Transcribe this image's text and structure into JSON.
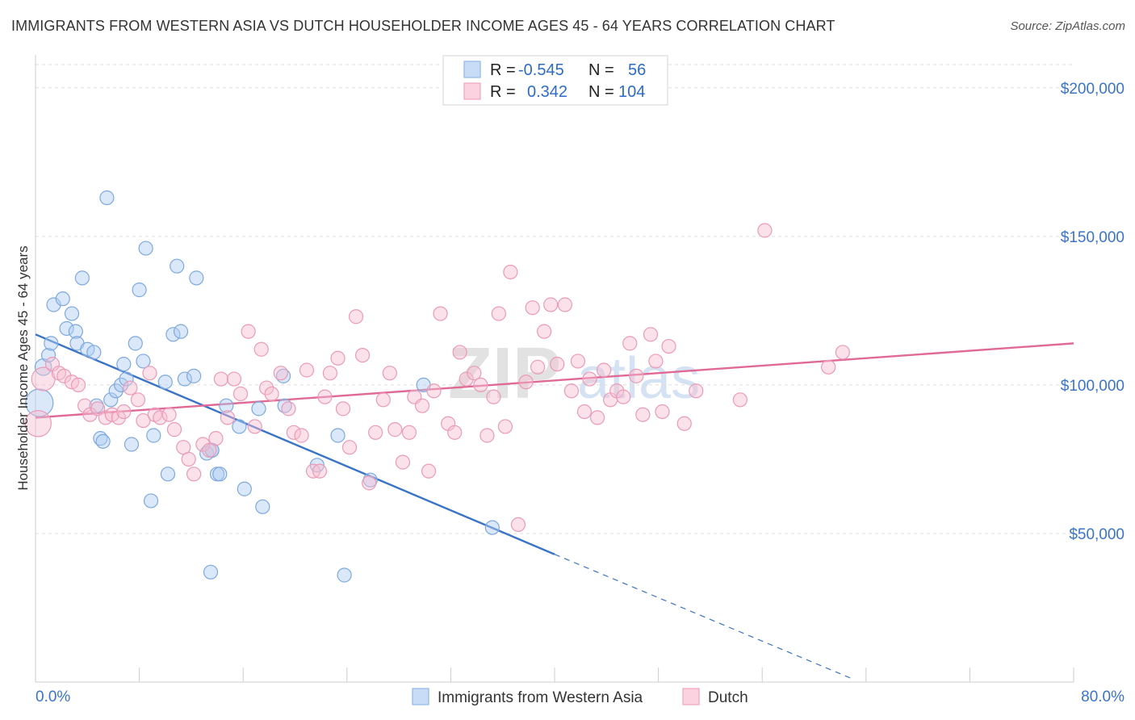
{
  "title": "IMMIGRANTS FROM WESTERN ASIA VS DUTCH HOUSEHOLDER INCOME AGES 45 - 64 YEARS CORRELATION CHART",
  "source": "Source: ZipAtlas.com",
  "watermark": {
    "zip": "ZIP",
    "atlas": "atlas"
  },
  "legend": {
    "r_label": "R =",
    "n_label": "N =",
    "rows": [
      {
        "r": "-0.545",
        "n": "56",
        "color": "#8fb8ea",
        "fill": "#c8dcf6"
      },
      {
        "r": "0.342",
        "n": "104",
        "color": "#f0a3bd",
        "fill": "#fbd3e0"
      }
    ]
  },
  "colors": {
    "blue": "#3a74c8",
    "blue_fill": "#aecbf1",
    "pink": "#e06a95",
    "pink_fill": "#f7bfd1",
    "grid": "#dddddd",
    "tick_text": "#3a74c8"
  },
  "chart_data": {
    "type": "scatter",
    "title": "IMMIGRANTS FROM WESTERN ASIA VS DUTCH HOUSEHOLDER INCOME AGES 45 - 64 YEARS CORRELATION CHART",
    "xlabel": "",
    "ylabel": "Householder Income Ages 45 - 64 years",
    "xlim": [
      0,
      80
    ],
    "ylim": [
      0,
      210000
    ],
    "x_tick_labels": [
      "0.0%",
      "80.0%"
    ],
    "y_ticks": [
      50000,
      100000,
      150000,
      200000
    ],
    "y_tick_labels": [
      "$50,000",
      "$100,000",
      "$150,000",
      "$200,000"
    ],
    "grid": true,
    "legend_position": "top-center",
    "series": [
      {
        "name": "Immigrants from Western Asia",
        "color": "#3a74c8",
        "points": [
          [
            0.3,
            94000,
            2.0
          ],
          [
            0.6,
            106000,
            1.2
          ],
          [
            1.0,
            110000,
            1.0
          ],
          [
            1.2,
            114000,
            1.0
          ],
          [
            1.4,
            127000,
            1.0
          ],
          [
            2.1,
            129000,
            1.0
          ],
          [
            2.4,
            119000,
            1.0
          ],
          [
            2.8,
            124000,
            1.0
          ],
          [
            3.1,
            118000,
            1.0
          ],
          [
            3.2,
            114000,
            1.0
          ],
          [
            3.6,
            136000,
            1.0
          ],
          [
            4.0,
            112000,
            1.0
          ],
          [
            4.5,
            111000,
            1.0
          ],
          [
            4.7,
            93000,
            1.0
          ],
          [
            5.0,
            82000,
            1.0
          ],
          [
            5.2,
            81000,
            1.0
          ],
          [
            5.5,
            163000,
            1.0
          ],
          [
            5.8,
            95000,
            1.0
          ],
          [
            6.2,
            98000,
            1.0
          ],
          [
            6.6,
            100000,
            1.0
          ],
          [
            6.8,
            107000,
            1.0
          ],
          [
            7.0,
            102000,
            1.0
          ],
          [
            7.4,
            80000,
            1.0
          ],
          [
            7.7,
            114000,
            1.0
          ],
          [
            8.0,
            132000,
            1.0
          ],
          [
            8.3,
            108000,
            1.0
          ],
          [
            8.5,
            146000,
            1.0
          ],
          [
            8.9,
            61000,
            1.0
          ],
          [
            9.1,
            83000,
            1.0
          ],
          [
            10.0,
            101000,
            1.0
          ],
          [
            10.2,
            70000,
            1.0
          ],
          [
            10.6,
            117000,
            1.0
          ],
          [
            10.9,
            140000,
            1.0
          ],
          [
            11.2,
            118000,
            1.0
          ],
          [
            11.5,
            102000,
            1.0
          ],
          [
            12.2,
            103000,
            1.0
          ],
          [
            12.4,
            136000,
            1.0
          ],
          [
            13.2,
            77000,
            1.0
          ],
          [
            13.5,
            37000,
            1.0
          ],
          [
            13.6,
            78000,
            1.0
          ],
          [
            14.0,
            70000,
            1.0
          ],
          [
            14.2,
            70000,
            1.0
          ],
          [
            14.7,
            93000,
            1.0
          ],
          [
            15.7,
            86000,
            1.0
          ],
          [
            16.1,
            65000,
            1.0
          ],
          [
            17.2,
            92000,
            1.0
          ],
          [
            17.5,
            59000,
            1.0
          ],
          [
            19.1,
            103000,
            1.0
          ],
          [
            21.7,
            73000,
            1.0
          ],
          [
            23.3,
            83000,
            1.0
          ],
          [
            23.8,
            36000,
            1.0
          ],
          [
            25.8,
            68000,
            1.0
          ],
          [
            29.9,
            100000,
            1.0
          ],
          [
            35.2,
            52000,
            1.0
          ],
          [
            19.2,
            93000,
            1.0
          ],
          [
            13.6,
            78000,
            1.0
          ]
        ]
      },
      {
        "name": "Dutch",
        "color": "#e06a95",
        "points": [
          [
            0.2,
            87000,
            1.9
          ],
          [
            0.6,
            102000,
            1.7
          ],
          [
            1.3,
            107000,
            1.0
          ],
          [
            1.8,
            104000,
            1.0
          ],
          [
            2.2,
            103000,
            1.0
          ],
          [
            2.8,
            101000,
            1.0
          ],
          [
            3.3,
            100000,
            1.0
          ],
          [
            3.8,
            93000,
            1.0
          ],
          [
            4.2,
            90000,
            1.0
          ],
          [
            4.8,
            92000,
            1.0
          ],
          [
            5.4,
            89000,
            1.0
          ],
          [
            5.9,
            90000,
            1.0
          ],
          [
            6.4,
            89000,
            1.0
          ],
          [
            6.8,
            91000,
            1.0
          ],
          [
            7.3,
            99000,
            1.0
          ],
          [
            7.9,
            95000,
            1.0
          ],
          [
            8.3,
            88000,
            1.0
          ],
          [
            8.8,
            104000,
            1.0
          ],
          [
            9.2,
            90000,
            1.0
          ],
          [
            9.6,
            89000,
            1.0
          ],
          [
            10.3,
            90000,
            1.0
          ],
          [
            10.7,
            85000,
            1.0
          ],
          [
            11.4,
            79000,
            1.0
          ],
          [
            11.8,
            75000,
            1.0
          ],
          [
            12.2,
            70000,
            1.0
          ],
          [
            12.9,
            80000,
            1.0
          ],
          [
            13.4,
            78000,
            1.0
          ],
          [
            13.9,
            82000,
            1.0
          ],
          [
            14.3,
            102000,
            1.0
          ],
          [
            14.8,
            89000,
            1.0
          ],
          [
            15.3,
            102000,
            1.0
          ],
          [
            15.8,
            97000,
            1.0
          ],
          [
            16.4,
            118000,
            1.0
          ],
          [
            16.9,
            86000,
            1.0
          ],
          [
            17.4,
            112000,
            1.0
          ],
          [
            17.8,
            99000,
            1.0
          ],
          [
            18.2,
            97000,
            1.0
          ],
          [
            18.9,
            104000,
            1.0
          ],
          [
            19.5,
            92000,
            1.0
          ],
          [
            19.9,
            84000,
            1.0
          ],
          [
            20.5,
            83000,
            1.0
          ],
          [
            20.9,
            105000,
            1.0
          ],
          [
            21.4,
            71000,
            1.0
          ],
          [
            21.9,
            71000,
            1.0
          ],
          [
            22.3,
            96000,
            1.0
          ],
          [
            22.7,
            104000,
            1.0
          ],
          [
            23.3,
            109000,
            1.0
          ],
          [
            23.7,
            92000,
            1.0
          ],
          [
            24.2,
            79000,
            1.0
          ],
          [
            24.7,
            123000,
            1.0
          ],
          [
            25.2,
            110000,
            1.0
          ],
          [
            25.7,
            67000,
            1.0
          ],
          [
            26.2,
            84000,
            1.0
          ],
          [
            26.8,
            95000,
            1.0
          ],
          [
            27.3,
            104000,
            1.0
          ],
          [
            27.7,
            85000,
            1.0
          ],
          [
            28.3,
            74000,
            1.0
          ],
          [
            28.8,
            84000,
            1.0
          ],
          [
            29.2,
            96000,
            1.0
          ],
          [
            29.8,
            93000,
            1.0
          ],
          [
            30.3,
            71000,
            1.0
          ],
          [
            30.7,
            98000,
            1.0
          ],
          [
            31.2,
            124000,
            1.0
          ],
          [
            31.8,
            87000,
            1.0
          ],
          [
            32.3,
            84000,
            1.0
          ],
          [
            32.7,
            111000,
            1.0
          ],
          [
            33.2,
            102000,
            1.0
          ],
          [
            33.8,
            104000,
            1.0
          ],
          [
            34.3,
            100000,
            1.0
          ],
          [
            34.8,
            83000,
            1.0
          ],
          [
            35.3,
            96000,
            1.0
          ],
          [
            35.7,
            124000,
            1.0
          ],
          [
            36.2,
            86000,
            1.0
          ],
          [
            36.6,
            138000,
            1.0
          ],
          [
            37.2,
            53000,
            1.0
          ],
          [
            37.8,
            101000,
            1.0
          ],
          [
            38.3,
            126000,
            1.0
          ],
          [
            38.7,
            106000,
            1.0
          ],
          [
            39.2,
            118000,
            1.0
          ],
          [
            39.7,
            127000,
            1.0
          ],
          [
            40.2,
            107000,
            1.0
          ],
          [
            40.8,
            127000,
            1.0
          ],
          [
            41.3,
            98000,
            1.0
          ],
          [
            41.8,
            108000,
            1.0
          ],
          [
            42.3,
            91000,
            1.0
          ],
          [
            42.7,
            102000,
            1.0
          ],
          [
            43.3,
            89000,
            1.0
          ],
          [
            43.8,
            105000,
            1.0
          ],
          [
            44.3,
            95000,
            1.0
          ],
          [
            44.8,
            98000,
            1.0
          ],
          [
            45.3,
            96000,
            1.0
          ],
          [
            45.8,
            114000,
            1.0
          ],
          [
            46.3,
            103000,
            1.0
          ],
          [
            46.8,
            90000,
            1.0
          ],
          [
            47.4,
            117000,
            1.0
          ],
          [
            47.8,
            108000,
            1.0
          ],
          [
            48.3,
            91000,
            1.0
          ],
          [
            48.8,
            113000,
            1.0
          ],
          [
            50.0,
            87000,
            1.0
          ],
          [
            50.9,
            98000,
            1.0
          ],
          [
            56.2,
            152000,
            1.0
          ],
          [
            61.1,
            106000,
            1.0
          ],
          [
            62.2,
            111000,
            1.0
          ],
          [
            54.3,
            95000,
            1.0
          ]
        ]
      }
    ],
    "trend_lines": [
      {
        "series": "Immigrants from Western Asia",
        "x": [
          0,
          40
        ],
        "y": [
          117000,
          43000
        ],
        "dashed_x": [
          40,
          63
        ],
        "dashed_y": [
          43000,
          1000
        ]
      },
      {
        "series": "Dutch",
        "x": [
          0,
          80
        ],
        "y": [
          89000,
          114000
        ]
      }
    ]
  }
}
